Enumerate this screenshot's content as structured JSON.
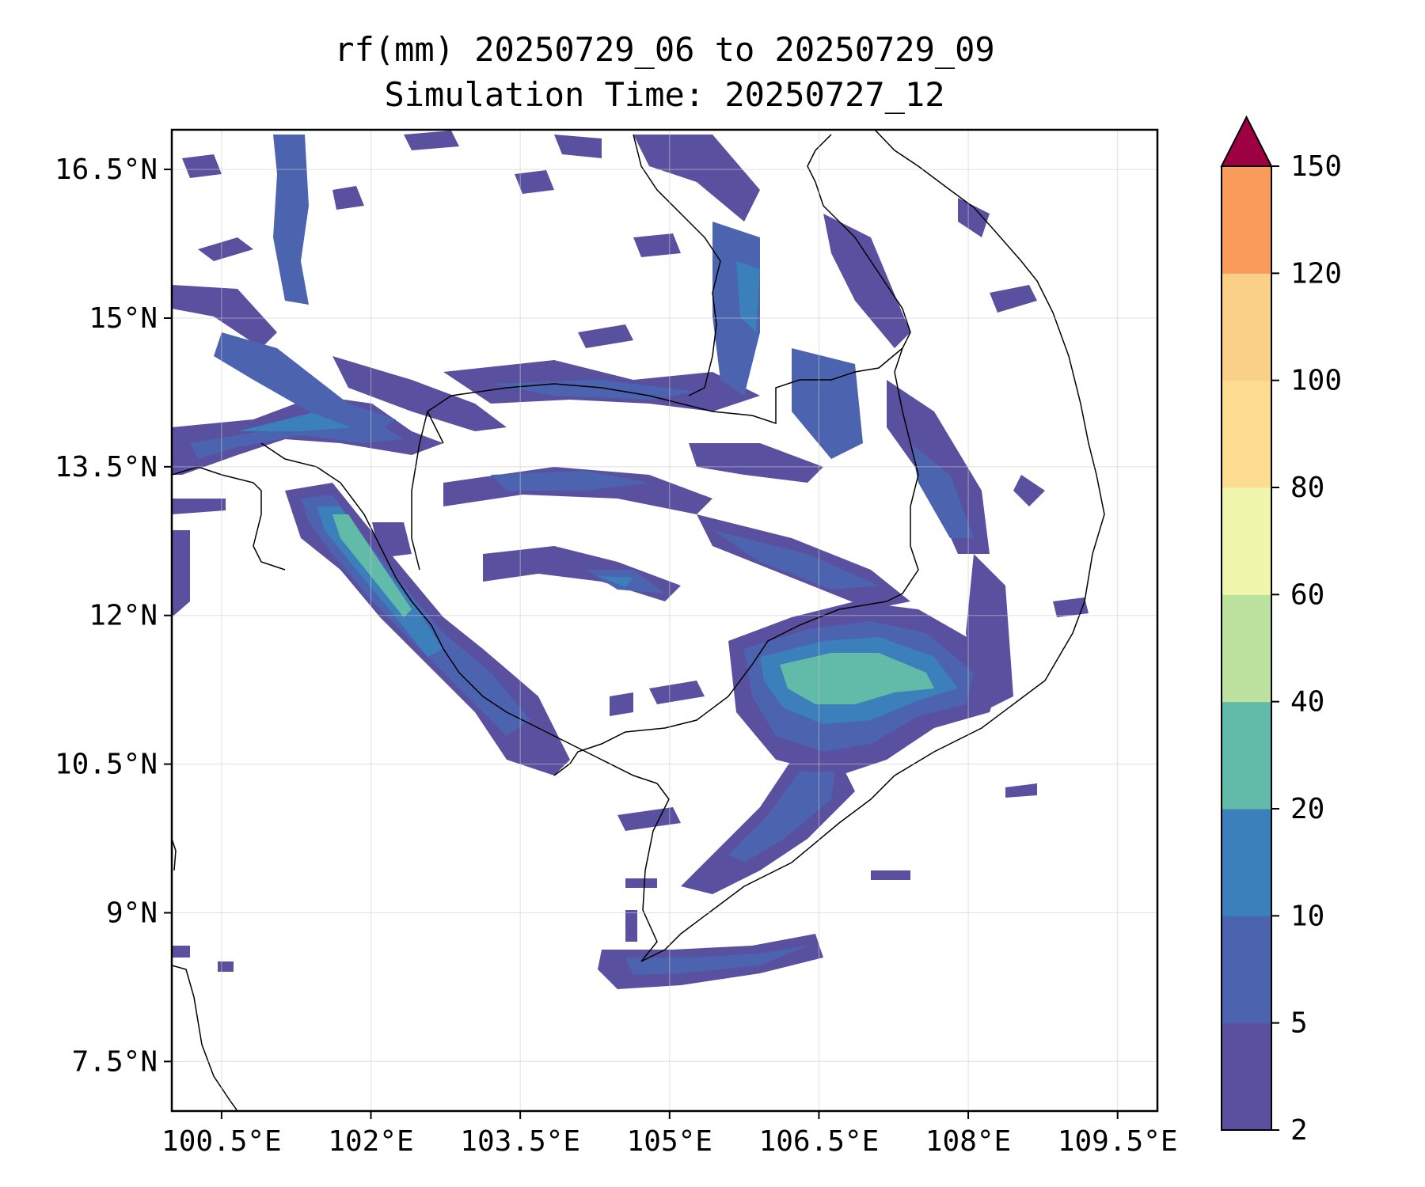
{
  "title": "rf(mm) 20250729_06 to 20250729_09",
  "subtitle": "Simulation Time: 20250727_12",
  "map": {
    "lon_range": [
      100.0,
      109.9
    ],
    "lat_range": [
      7.0,
      16.9
    ],
    "lon_ticks": [
      {
        "value": 100.5,
        "label": "100.5°E"
      },
      {
        "value": 102.0,
        "label": "102°E"
      },
      {
        "value": 103.5,
        "label": "103.5°E"
      },
      {
        "value": 105.0,
        "label": "105°E"
      },
      {
        "value": 106.5,
        "label": "106.5°E"
      },
      {
        "value": 108.0,
        "label": "108°E"
      },
      {
        "value": 109.5,
        "label": "109.5°E"
      }
    ],
    "lat_ticks": [
      {
        "value": 16.5,
        "label": "16.5°N"
      },
      {
        "value": 15.0,
        "label": "15°N"
      },
      {
        "value": 13.5,
        "label": "13.5°N"
      },
      {
        "value": 12.0,
        "label": "12°N"
      },
      {
        "value": 10.5,
        "label": "10.5°N"
      },
      {
        "value": 9.0,
        "label": "9°N"
      },
      {
        "value": 7.5,
        "label": "7.5°N"
      }
    ],
    "grid": true
  },
  "colorbar": {
    "levels": [
      2,
      5,
      10,
      20,
      40,
      60,
      80,
      100,
      120,
      150
    ],
    "labels": [
      "2",
      "5",
      "10",
      "20",
      "40",
      "60",
      "80",
      "100",
      "120",
      "150"
    ],
    "colors": [
      "#5a50a0",
      "#4c63b0",
      "#3b7fbb",
      "#61bba8",
      "#bde2a0",
      "#f0f7ac",
      "#fcdd8f",
      "#f9d086",
      "#f99b5a",
      "#d53e4f"
    ],
    "extend_color": "#9e0142",
    "extend": "max"
  },
  "colors": {
    "rain_2_5": "#5a50a0",
    "rain_5_10": "#4c63b0",
    "rain_10_20": "#3b7fbb",
    "rain_20_40": "#61bba8",
    "rain_40_60": "#bde2a0"
  }
}
